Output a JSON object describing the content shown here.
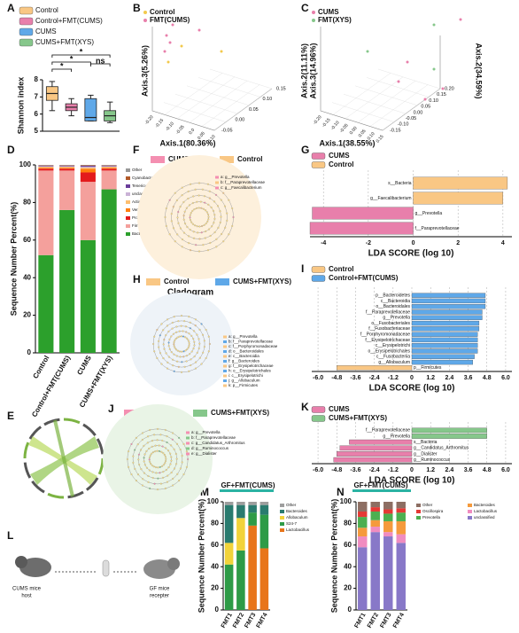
{
  "panel_labels": [
    "A",
    "B",
    "C",
    "D",
    "E",
    "F",
    "G",
    "H",
    "I",
    "J",
    "K",
    "L",
    "M",
    "N"
  ],
  "chart_data": [
    {
      "type": "box",
      "categories": [
        "Control",
        "Control+FMT(CUMS)",
        "CUMS",
        "CUMS+FMT(XYS)"
      ],
      "colors": [
        "#f9c784",
        "#e87fab",
        "#5fa8e8",
        "#86c78b"
      ],
      "boxes": [
        {
          "min": 6.2,
          "q1": 6.8,
          "median": 7.2,
          "q3": 7.6,
          "max": 7.9
        },
        {
          "min": 5.9,
          "q1": 6.2,
          "median": 6.4,
          "q3": 6.6,
          "max": 6.9
        },
        {
          "min": 5.6,
          "q1": 5.6,
          "median": 5.8,
          "q3": 6.9,
          "max": 7.1
        },
        {
          "min": 5.5,
          "q1": 5.6,
          "median": 5.9,
          "q3": 6.2,
          "max": 6.7
        }
      ],
      "ylabel": "Shannon index",
      "ylim": [
        5,
        8
      ],
      "yticks": [
        5,
        6,
        7,
        8
      ],
      "annotations": [
        "*",
        "*",
        "*",
        "ns"
      ]
    },
    {
      "type": "stacked_bar",
      "ylabel": "Sequence Number Percent(%)",
      "categories": [
        "Control",
        "Control+FMT(CUMS)",
        "CUMS",
        "CUMS+FMT(XYS)"
      ],
      "series": [
        {
          "name": "Bacteroidetes",
          "color": "#2ca02c",
          "values": [
            52,
            76,
            60,
            87
          ]
        },
        {
          "name": "Firmicutes",
          "color": "#f4a09c",
          "values": [
            45,
            21,
            31,
            10
          ]
        },
        {
          "name": "Proteobacteria",
          "color": "#e31a1c",
          "values": [
            1,
            1,
            5,
            1
          ]
        },
        {
          "name": "Verrucomicrobia",
          "color": "#ff7f0e",
          "values": [
            0.5,
            0.5,
            2,
            0.5
          ]
        },
        {
          "name": "Actinobacteria",
          "color": "#fdbf6f",
          "values": [
            0.5,
            0.5,
            0.5,
            0.5
          ]
        },
        {
          "name": "unclassified",
          "color": "#cab2d6",
          "values": [
            0.3,
            0.3,
            0.5,
            0.3
          ]
        },
        {
          "name": "Tenericutes",
          "color": "#6a3d9a",
          "values": [
            0.3,
            0.3,
            0.5,
            0.3
          ]
        },
        {
          "name": "Cyanobacteria",
          "color": "#b15928",
          "values": [
            0.2,
            0.2,
            0.3,
            0.2
          ]
        },
        {
          "name": "Other",
          "color": "#999999",
          "values": [
            0.2,
            0.2,
            0.2,
            0.2
          ]
        }
      ],
      "ylim": [
        0,
        100
      ],
      "yticks": [
        0,
        20,
        40,
        60,
        80,
        100
      ]
    },
    {
      "type": "lda",
      "series": [
        {
          "name": "CUMS",
          "color": "#e87fab",
          "categories": [
            "g__Prevotella",
            "f__Paraprevotellaceae"
          ],
          "values": [
            -4.5,
            -4.6
          ]
        },
        {
          "name": "Control",
          "color": "#f9c784",
          "categories": [
            "s__Bacteria",
            "g__Faecalibacterium"
          ],
          "values": [
            4.2,
            4.0
          ]
        }
      ],
      "xlim": [
        -4.6,
        4.4
      ],
      "xticks": [
        -4,
        -2,
        0,
        2,
        4
      ],
      "xlabel": "LDA SCORE (log 10)",
      "grid": true
    },
    {
      "type": "lda",
      "series": [
        {
          "name": "Control",
          "color": "#f9c784",
          "categories": [
            "p__Firmicutes"
          ],
          "values": [
            -4.8
          ]
        },
        {
          "name": "Control+FMT(CUMS)",
          "color": "#5fa8e8",
          "categories": [
            "p__Bacteroidetes",
            "c__Bacteroidia",
            "o__Bacteroidales",
            "f__Paraprevotellaceae",
            "g__Prevotella",
            "o__Fusobacteriales",
            "f__Fusobacteriaceae",
            "f__Porphyromonadaceae",
            "f__Erysipelotrichaceae",
            "c__Erysipelotrichi",
            "o__Erysipelotrichales",
            "c__Fusobacteriia",
            "g__Allobaculum"
          ],
          "values": [
            4.7,
            4.7,
            4.7,
            4.5,
            4.5,
            4.3,
            4.3,
            4.2,
            4.2,
            4.2,
            4.2,
            4.0,
            3.9
          ]
        }
      ],
      "xlim": [
        -6.4,
        6.4
      ],
      "xticks": [
        {
          "value": -6,
          "label": "-6.0"
        },
        -4.8,
        -3.6,
        -2.4,
        -1.2,
        0,
        1.2,
        2.4,
        3.6,
        4.8,
        {
          "value": 6,
          "label": "6.0"
        }
      ],
      "xlabel": "LDA SCORE (log 10)",
      "grid": true
    },
    {
      "type": "lda",
      "series": [
        {
          "name": "CUMS",
          "color": "#e87fab",
          "categories": [
            "s__Bacteria",
            "g__Candidatus_Arthromitus",
            "g__Dialister",
            "g__Ruminococcus"
          ],
          "values": [
            -4.0,
            -4.6,
            -4.8,
            -5.0
          ]
        },
        {
          "name": "CUMS+FMT(XYS)",
          "color": "#86c78b",
          "categories": [
            "f__Paraprevotellaceae",
            "g__Prevotella"
          ],
          "values": [
            4.8,
            4.8
          ]
        }
      ],
      "xlim": [
        -6.4,
        6.4
      ],
      "xticks": [
        {
          "value": -6,
          "label": "-6.0"
        },
        -4.8,
        -3.6,
        -2.4,
        -1.2,
        0,
        1.2,
        2.4,
        3.6,
        4.8,
        {
          "value": 6,
          "label": "6.0"
        }
      ],
      "xlabel": "LDA SCORE (log 10)",
      "grid": true
    },
    {
      "type": "stacked_bar",
      "title": "GF+FMT(CUMS)",
      "ylabel": "Sequence Number Percent(%)",
      "categories": [
        "FMT1",
        "FMT2",
        "FMT3",
        "FMT4"
      ],
      "series": [
        {
          "name": "Lactobacillus",
          "color": "#e8751a",
          "values": [
            0,
            0,
            78,
            57
          ]
        },
        {
          "name": "S24-7",
          "color": "#2e9b47",
          "values": [
            42,
            55,
            12,
            31
          ]
        },
        {
          "name": "Allobaculum",
          "color": "#f2d33a",
          "values": [
            20,
            30,
            0,
            0
          ]
        },
        {
          "name": "Bacteroides",
          "color": "#2a7b6f",
          "values": [
            35,
            12,
            7,
            9
          ]
        },
        {
          "name": "Other",
          "color": "#9e9e9e",
          "values": [
            3,
            3,
            3,
            3
          ]
        }
      ],
      "ylim": [
        0,
        100
      ],
      "yticks": [
        0,
        20,
        40,
        60,
        80,
        100
      ]
    },
    {
      "type": "stacked_bar",
      "title": "GF+FMT(CUMS)",
      "ylabel": "Sequence Number Percent(%)",
      "categories": [
        "FMT1",
        "FMT2",
        "FMT3",
        "FMT4"
      ],
      "series": [
        {
          "name": "unclassified",
          "color": "#8878c8",
          "values": [
            58,
            72,
            68,
            62
          ]
        },
        {
          "name": "Lactobacillus",
          "color": "#f08cc0",
          "values": [
            10,
            5,
            4,
            8
          ]
        },
        {
          "name": "Bacteroides",
          "color": "#f59a3c",
          "values": [
            8,
            6,
            10,
            12
          ]
        },
        {
          "name": "Prevotella",
          "color": "#4caf50",
          "values": [
            10,
            8,
            7,
            8
          ]
        },
        {
          "name": "Oscillospira",
          "color": "#e53935",
          "values": [
            5,
            4,
            4,
            4
          ]
        },
        {
          "name": "Other",
          "color": "#8d6e63",
          "values": [
            9,
            5,
            7,
            6
          ]
        }
      ],
      "ylim": [
        0,
        100
      ],
      "yticks": [
        0,
        20,
        40,
        60,
        80,
        100
      ]
    }
  ],
  "panels": {
    "B": {
      "legend": [
        {
          "name": "Control",
          "color": "#f2c94c"
        },
        {
          "name": "FMT(CUMS)",
          "color": "#e87fab"
        }
      ],
      "axis_labels": [
        "Axis.3(5.26%)",
        "Axis.1(80.36%)"
      ],
      "ticks_right": [
        "0.15",
        "0.10",
        "0.05",
        "0.00",
        "-0.05"
      ],
      "ticks_bottom": [
        "-0.20",
        "-0.15",
        "-0.10",
        "-0.05",
        "0.0",
        "0.05",
        "0.10"
      ]
    },
    "C": {
      "legend": [
        {
          "name": "CUMS",
          "color": "#e87fab"
        },
        {
          "name": "FMT(XYS)",
          "color": "#86c78b"
        }
      ],
      "axis_labels": [
        "Axis.3(14.96%)",
        "Axis.2(11.11%)",
        "Axis.1(38.55%)",
        "Axis.2(34.59%)"
      ],
      "ticks_right": [
        "0.20",
        "0.15",
        "0.10",
        "0.05",
        "0.00",
        "-0.05",
        "-0.10",
        "-0.15"
      ],
      "ticks_bottom": [
        "-0.20",
        "-0.15",
        "-0.10",
        "-0.05",
        "0.00",
        "0.05",
        "0.10",
        "0.15"
      ]
    },
    "F": {
      "legend": [
        {
          "name": "CUMS",
          "color": "#f48fb1"
        },
        {
          "name": "Control",
          "color": "#f9c784"
        }
      ],
      "title": "Cladogram",
      "items": [
        "a: g__Prevotella",
        "b: f__Paraprevotellaceae",
        "c: g__Faecalibacterium"
      ]
    },
    "H": {
      "legend": [
        {
          "name": "Control",
          "color": "#f9c784"
        },
        {
          "name": "CUMS+FMT(XYS)",
          "color": "#5fa8e8"
        }
      ],
      "title": "Cladogram",
      "items": [
        "a: g__Prevotella",
        "b: f__Paraprevotellaceae",
        "c: f__Porphyromonadaceae",
        "d: o__Bacteroidales",
        "e: c__Bacteroidia",
        "f: g__Bacteroides",
        "g: f__Erysipelotrichaceae",
        "h: o__Erysipelotrichales",
        "i: c__Erysipelotrichi",
        "j: g__Allobaculum",
        "k: p__Firmicutes"
      ]
    },
    "J": {
      "legend": [
        {
          "name": "CUMS",
          "color": "#f48fb1"
        },
        {
          "name": "CUMS+FMT(XYS)",
          "color": "#86c78b"
        }
      ],
      "title": "Cladogram",
      "items": [
        "a: g__Prevotella",
        "b: f__Paraprevotellaceae",
        "c: g__Candidatus_Arthromitus",
        "d: g__Ruminococcus",
        "e: g__Dialister"
      ]
    },
    "L": {
      "labels": [
        "CUMS mice",
        "host",
        "GF mice",
        "recepter"
      ]
    }
  }
}
